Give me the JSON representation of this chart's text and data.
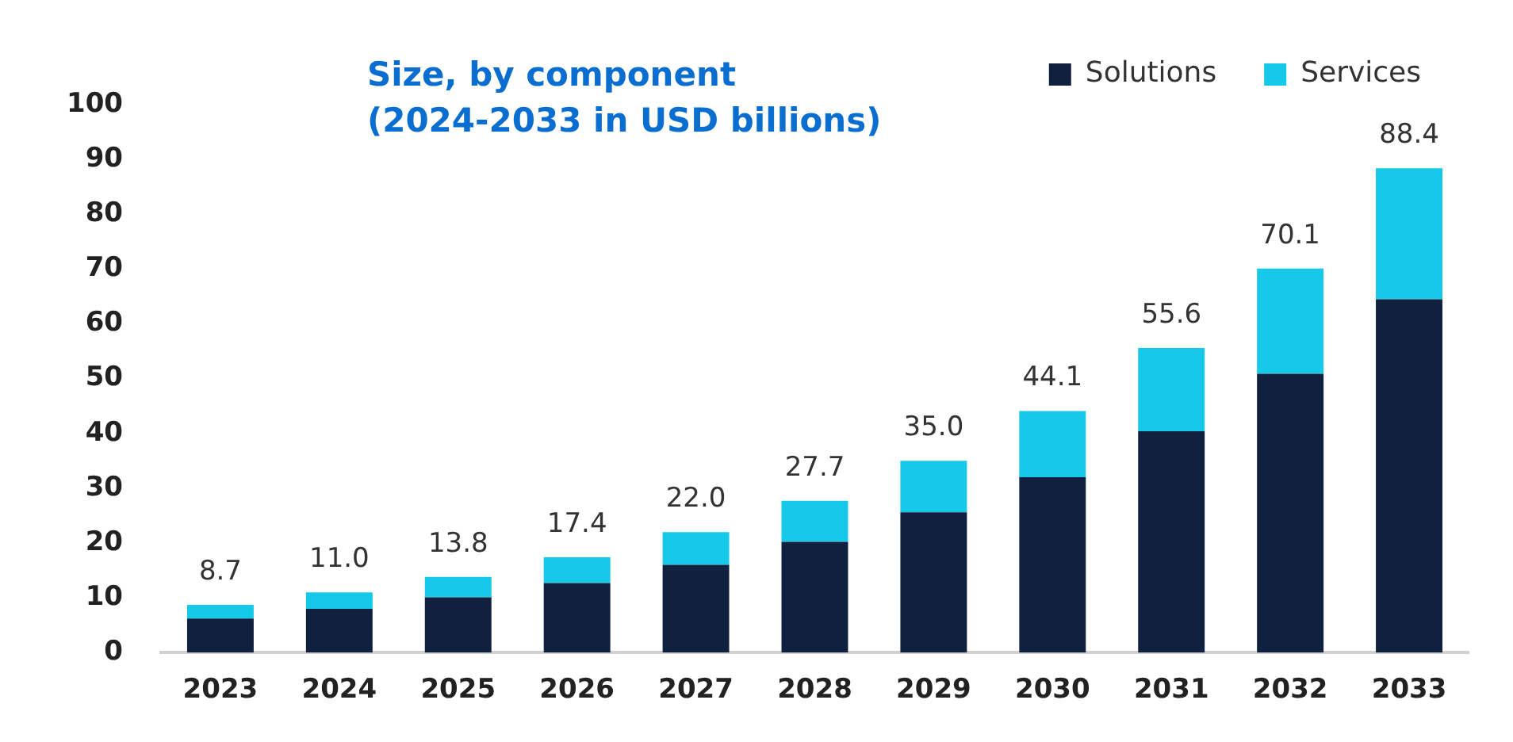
{
  "chart_data": {
    "type": "bar",
    "title": "Size, by component",
    "subtitle": "(2024-2033 in USD billions)",
    "categories": [
      "2023",
      "2024",
      "2025",
      "2026",
      "2027",
      "2028",
      "2029",
      "2030",
      "2031",
      "2032",
      "2033"
    ],
    "series": [
      {
        "name": "Solutions",
        "color": "#10213f",
        "values": [
          6.2,
          8.0,
          10.1,
          12.7,
          16.0,
          20.2,
          25.6,
          32.0,
          40.4,
          50.9,
          64.5
        ]
      },
      {
        "name": "Services",
        "color": "#17c9e8",
        "values": [
          2.5,
          3.0,
          3.7,
          4.7,
          6.0,
          7.5,
          9.4,
          12.1,
          15.2,
          19.2,
          23.9
        ]
      }
    ],
    "stacked": true,
    "totals": [
      "8.7",
      "11.0",
      "13.8",
      "17.4",
      "22.0",
      "27.7",
      "35.0",
      "44.1",
      "55.6",
      "70.1",
      "88.4"
    ],
    "ylim": [
      0,
      100
    ],
    "yticks": [
      0,
      10,
      20,
      30,
      40,
      50,
      60,
      70,
      80,
      90,
      100
    ],
    "grid": false,
    "legend": "top right"
  }
}
